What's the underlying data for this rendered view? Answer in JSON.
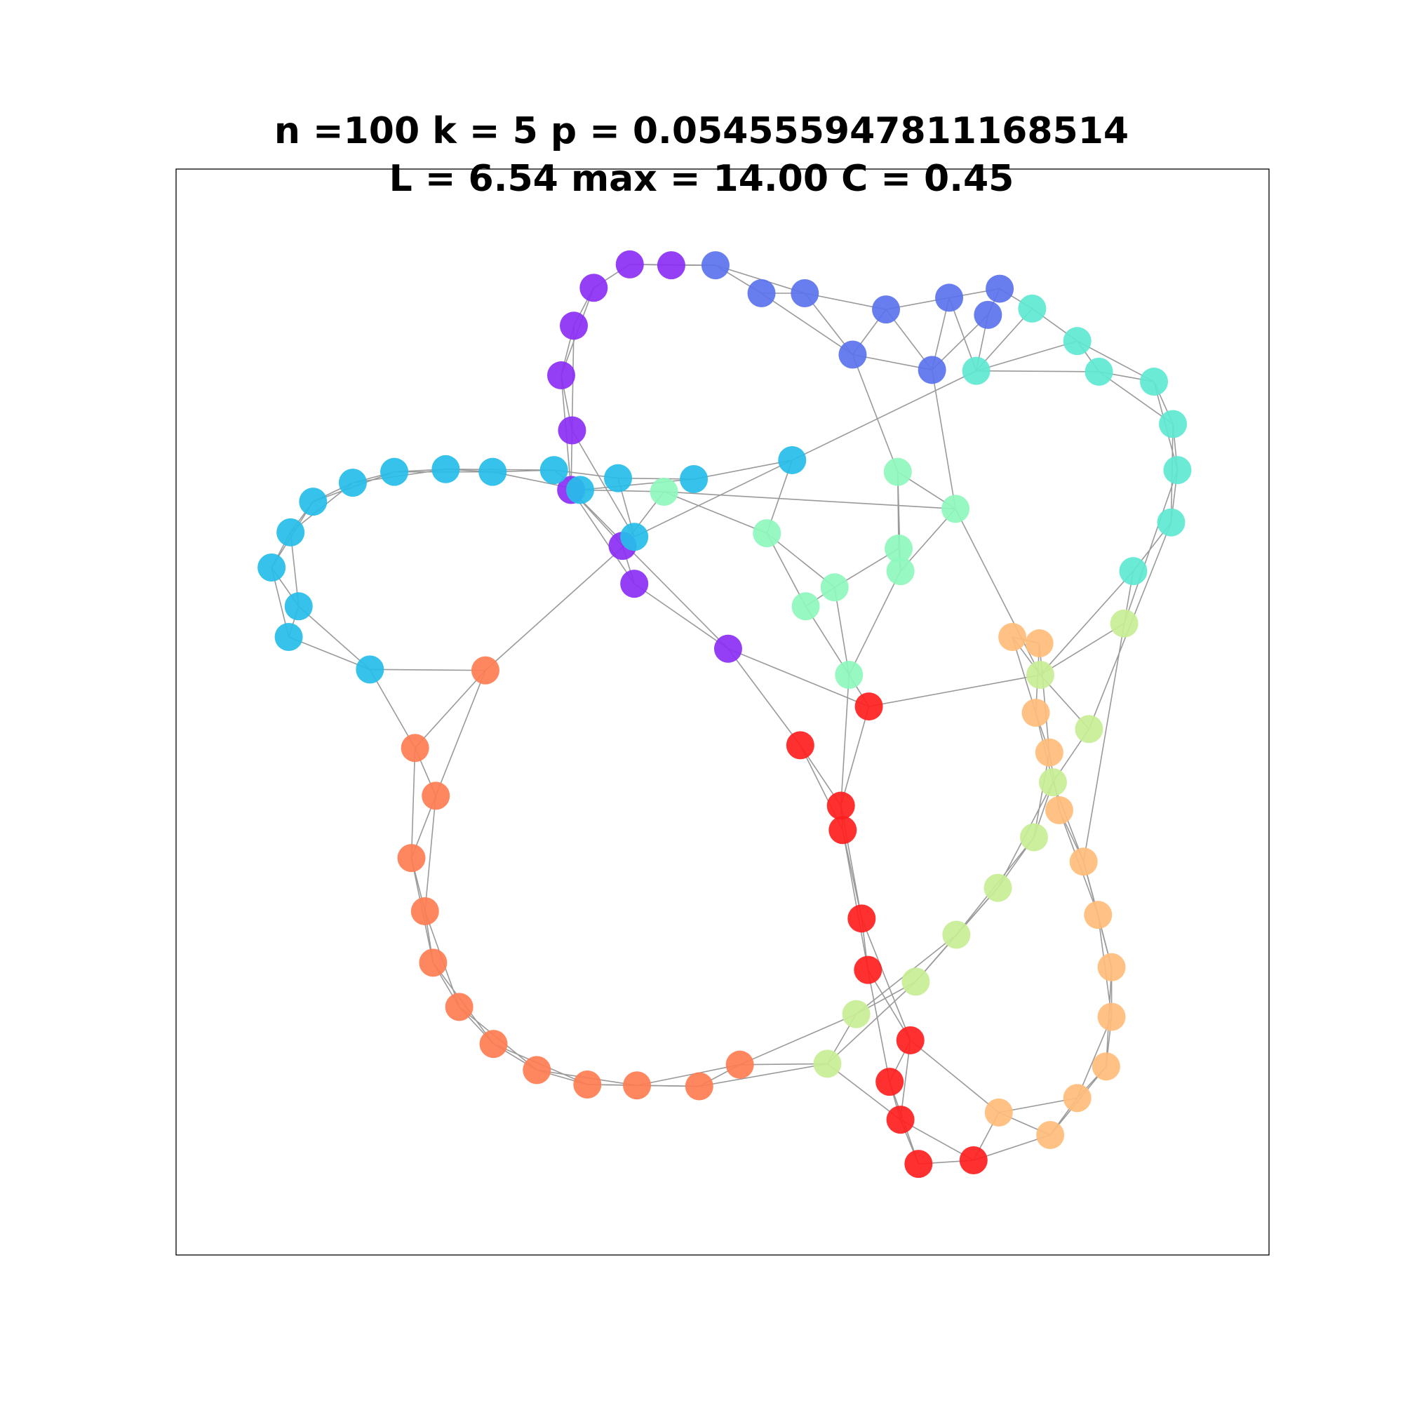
{
  "title": {
    "line1": "n =100 k = 5 p = 0.054555947811168514",
    "line2": "L = 6.54 max = 14.00 C = 0.45"
  },
  "colors": {
    "edge": "#9a9a9a",
    "frame": "#000000",
    "purple": "#8b2ff5",
    "blue": "#5b73ee",
    "turquoise": "#5ee8d3",
    "cyan": "#25bde8",
    "mint": "#8ef7bd",
    "lime": "#c8ee96",
    "orange": "#ffbd7a",
    "coral": "#ff7d52",
    "red": "#ff1e1e"
  }
}
